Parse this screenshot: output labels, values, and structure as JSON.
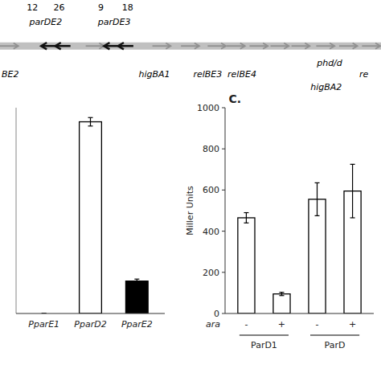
{
  "chart_data": [
    {
      "type": "bar",
      "categories": [
        "PparE1",
        "PparD2",
        "PparE2"
      ],
      "values": [
        0,
        680,
        115
      ],
      "errors": [
        0,
        15,
        7
      ],
      "colors": [
        "white",
        "white",
        "black"
      ],
      "ylim": [
        0,
        730
      ],
      "tick_labels": "x",
      "grid": false
    },
    {
      "type": "bar",
      "title": "C.",
      "xlabel": "ara",
      "ylabel": "Miller Units",
      "categories": [
        "-",
        "+",
        "-",
        "+"
      ],
      "values": [
        465,
        95,
        555,
        595
      ],
      "errors": [
        25,
        8,
        80,
        130
      ],
      "color": "white",
      "ylim": [
        0,
        1000
      ],
      "yticks": [
        0,
        200,
        400,
        600,
        800,
        1000
      ],
      "groups": [
        {
          "label": "ParD1",
          "categories": [
            0,
            1
          ]
        },
        {
          "label": "ParD",
          "categories": [
            2,
            3
          ]
        }
      ],
      "grid": false
    },
    {
      "type": "schematic",
      "annotations": [
        "12",
        "26",
        "9",
        "18",
        "parDE2",
        "parDE3",
        "BE2",
        "higBA1",
        "relBE3",
        "relBE4",
        "phd/d",
        "higBA2",
        "re"
      ]
    }
  ]
}
